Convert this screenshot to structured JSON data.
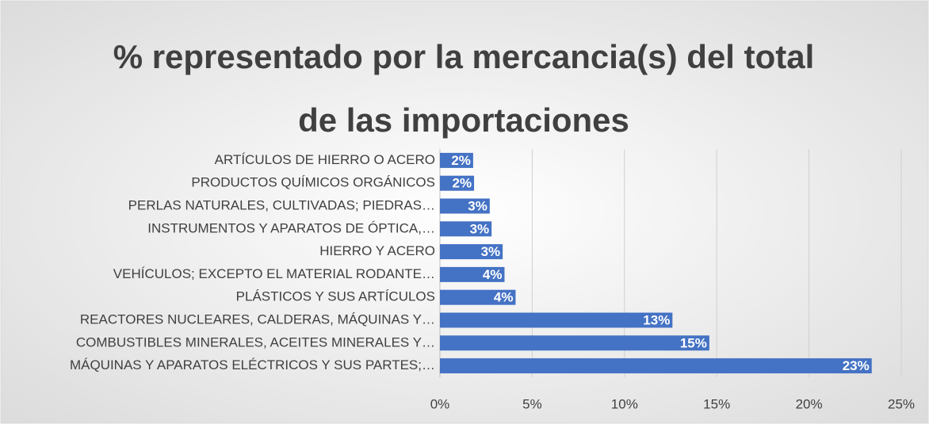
{
  "chart_data": {
    "type": "bar",
    "orientation": "horizontal",
    "title": [
      "% representado por la mercancia(s) del total",
      "de las importaciones"
    ],
    "categories": [
      "ARTÍCULOS DE HIERRO O ACERO",
      "PRODUCTOS QUÍMICOS ORGÁNICOS",
      "PERLAS NATURALES, CULTIVADAS; PIEDRAS…",
      "INSTRUMENTOS Y APARATOS DE ÓPTICA,…",
      "HIERRO Y ACERO",
      "VEHÍCULOS; EXCEPTO EL MATERIAL RODANTE…",
      "PLÁSTICOS Y SUS ARTÍCULOS",
      "REACTORES NUCLEARES, CALDERAS, MÁQUINAS Y…",
      "COMBUSTIBLES MINERALES, ACEITES MINERALES Y…",
      "MÁQUINAS Y APARATOS ELÉCTRICOS Y SUS PARTES;…"
    ],
    "values": [
      1.8,
      1.85,
      2.7,
      2.8,
      3.4,
      3.5,
      4.1,
      12.6,
      14.6,
      23.4
    ],
    "value_labels": [
      "2%",
      "2%",
      "3%",
      "3%",
      "3%",
      "4%",
      "4%",
      "13%",
      "15%",
      "23%"
    ],
    "color": "#4472c4",
    "xlim": [
      0,
      25
    ],
    "xticks": [
      {
        "value": 0,
        "label": "0%"
      },
      {
        "value": 5,
        "label": "5%"
      },
      {
        "value": 10,
        "label": "10%"
      },
      {
        "value": 15,
        "label": "15%"
      },
      {
        "value": 20,
        "label": "20%"
      },
      {
        "value": 25,
        "label": "25%"
      }
    ],
    "grid": true
  }
}
